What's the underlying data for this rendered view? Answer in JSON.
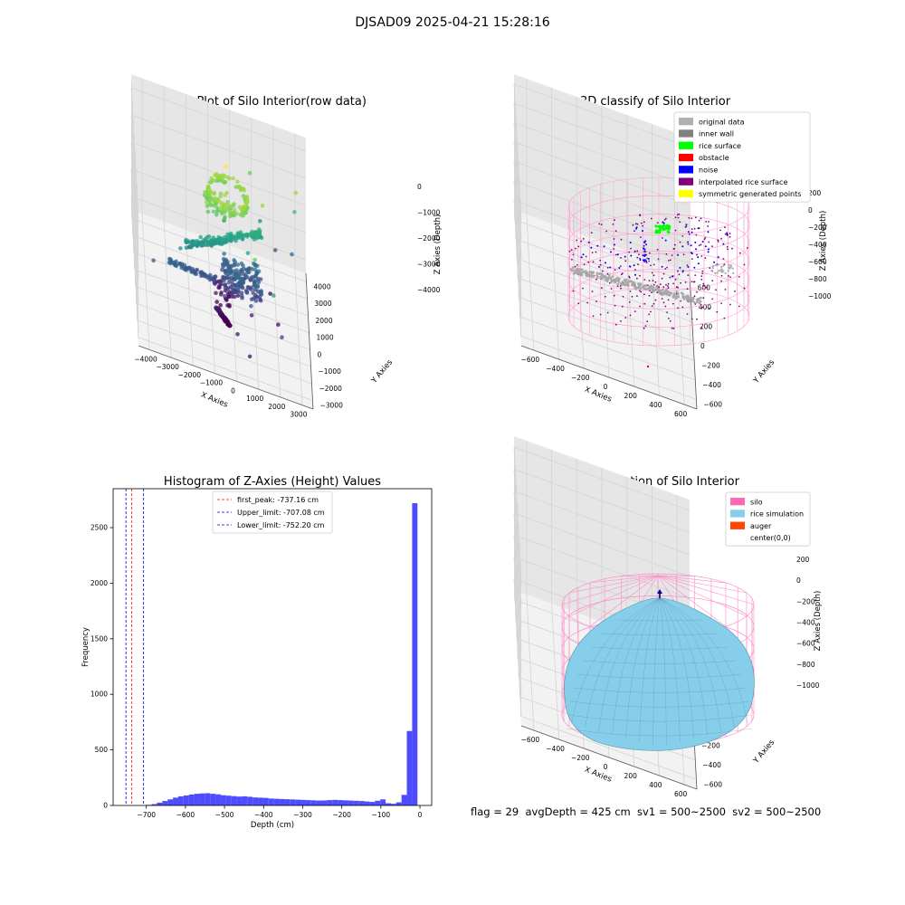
{
  "suptitle": "DJSAD09 2025-04-21 15:28:16",
  "footer": "flag = 29  avgDepth = 425 cm  sv1 = 500~2500  sv2 = 500~2500",
  "colors": {
    "viridis": [
      "#440154",
      "#414487",
      "#2a788e",
      "#22a884",
      "#7ad151",
      "#fde725"
    ],
    "hist_bar": "#4d4dff",
    "first_peak": "#ff0000",
    "limits": "#0000cc",
    "silo": "#ff69b4",
    "rice": "#87ceeb",
    "auger": "#ff4500",
    "pane": "#f2f2f2"
  },
  "chart_data": [
    {
      "type": "scatter",
      "title": "3D Plot of Silo Interior(row data)",
      "xlabel": "X Axies",
      "ylabel": "Y Axies",
      "zlabel": "Z Axies (Depth)",
      "xticks": [
        "−4000",
        "−3000",
        "−2000",
        "−1000",
        "0",
        "1000",
        "2000",
        "3000"
      ],
      "yticks": [
        "−3000",
        "−2000",
        "−1000",
        "0",
        "1000",
        "2000",
        "3000",
        "4000"
      ],
      "zticks": [
        "0",
        "−1000",
        "−2000",
        "−3000",
        "−4000"
      ],
      "xlim": [
        -4500,
        3500
      ],
      "ylim": [
        -3500,
        4500
      ],
      "zlim": [
        -4500,
        200
      ]
    },
    {
      "type": "scatter",
      "title": "3D classify of Silo Interior",
      "xlabel": "X Axies",
      "ylabel": "Y Axies",
      "zlabel": "Z Axies (Depth)",
      "xticks": [
        "−600",
        "−400",
        "−200",
        "0",
        "200",
        "400",
        "600"
      ],
      "yticks": [
        "−600",
        "−400",
        "−200",
        "0",
        "200",
        "400",
        "600"
      ],
      "zticks": [
        "200",
        "0",
        "−200",
        "−400",
        "−600",
        "−800",
        "−1000"
      ],
      "legend": [
        {
          "label": "original data",
          "color": "#b0b0b0"
        },
        {
          "label": "inner wall",
          "color": "#808080"
        },
        {
          "label": "rice surface",
          "color": "#00ff00"
        },
        {
          "label": "obstacle",
          "color": "#ff0000"
        },
        {
          "label": "noise",
          "color": "#0000ff"
        },
        {
          "label": "interpolated rice surface",
          "color": "#800080"
        },
        {
          "label": "symmetric generated points",
          "color": "#ffff00"
        }
      ],
      "legend_position": "upper right"
    },
    {
      "type": "bar",
      "title": "Histogram of Z-Axies (Height) Values",
      "xlabel": "Depth (cm)",
      "ylabel": "Frequency",
      "xlim": [
        -785,
        30
      ],
      "ylim": [
        0,
        2850
      ],
      "xticks": [
        -700,
        -600,
        -500,
        -400,
        -300,
        -200,
        -100,
        0
      ],
      "yticks": [
        0,
        500,
        1000,
        1500,
        2000,
        2500
      ],
      "bin_width": 13.6,
      "bins_start": [
        -700,
        -686.4,
        -672.8,
        -659.2,
        -645.6,
        -632,
        -618.4,
        -604.8,
        -591.2,
        -577.6,
        -564,
        -550.4,
        -536.8,
        -523.2,
        -509.6,
        -496,
        -482.4,
        -468.8,
        -455.2,
        -441.6,
        -428,
        -414.4,
        -400.8,
        -387.2,
        -373.6,
        -360,
        -346.4,
        -332.8,
        -319.2,
        -305.6,
        -292,
        -278.4,
        -264.8,
        -251.2,
        -237.6,
        -224,
        -210.4,
        -196.8,
        -183.2,
        -169.6,
        -156,
        -142.4,
        -128.8,
        -115.2,
        -101.6,
        -88,
        -74.4,
        -60.8,
        -47.2,
        -33.6,
        -20,
        -6.4
      ],
      "values": [
        5,
        12,
        25,
        40,
        55,
        70,
        82,
        90,
        98,
        105,
        108,
        110,
        105,
        100,
        92,
        88,
        84,
        80,
        82,
        78,
        72,
        70,
        68,
        62,
        60,
        58,
        56,
        54,
        52,
        50,
        48,
        46,
        44,
        45,
        48,
        50,
        48,
        46,
        44,
        42,
        40,
        36,
        32,
        42,
        55,
        20,
        15,
        28,
        95,
        670,
        2720,
        0
      ],
      "lines": [
        {
          "label": "first_peak: -737.16 cm",
          "x": -737.16,
          "color": "#ff0000"
        },
        {
          "label": "Upper_limit: -707.08 cm",
          "x": -707.08,
          "color": "#0000cc"
        },
        {
          "label": "Lower_limit: -752.20 cm",
          "x": -752.2,
          "color": "#0000cc"
        }
      ],
      "legend_position": "upper center"
    },
    {
      "type": "area",
      "title": "3D simulation of Silo Interior",
      "xlabel": "X Axies",
      "ylabel": "Y Axies",
      "zlabel": "Z Axies (Depth)",
      "xticks": [
        "−600",
        "−400",
        "−200",
        "0",
        "200",
        "400",
        "600"
      ],
      "yticks": [
        "−600",
        "−400",
        "−200",
        "0",
        "200",
        "400",
        "600"
      ],
      "zticks": [
        "200",
        "0",
        "−200",
        "−400",
        "−600",
        "−800",
        "−1000"
      ],
      "legend": [
        {
          "label": "silo",
          "color": "#ff69b4"
        },
        {
          "label": "rice simulation",
          "color": "#87ceeb"
        },
        {
          "label": "auger",
          "color": "#ff4500"
        },
        {
          "label": "center(0,0)",
          "color": "none"
        }
      ],
      "legend_position": "upper right"
    }
  ]
}
